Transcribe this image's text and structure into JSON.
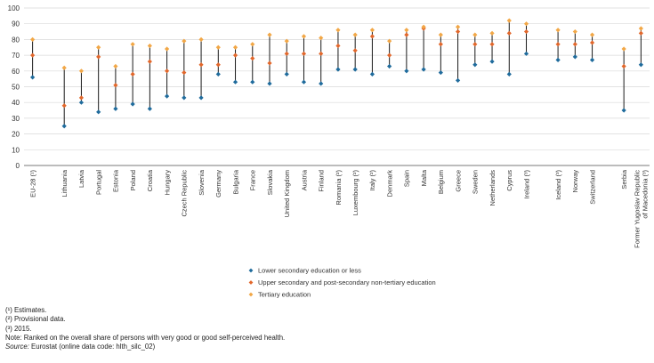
{
  "chart_data": {
    "type": "scatter",
    "ylim": [
      0,
      100
    ],
    "yticks": [
      0,
      10,
      20,
      30,
      40,
      50,
      60,
      70,
      80,
      90,
      100
    ],
    "categories": [
      "EU-28 (¹)",
      "Lithuania",
      "Latvia",
      "Portugal",
      "Estonia",
      "Poland",
      "Croatia",
      "Hungary",
      "Czech Republic",
      "Slovenia",
      "Germany",
      "Bulgaria",
      "France",
      "Slovakia",
      "United Kingdom",
      "Austria",
      "Finland",
      "Romania (²)",
      "Luxembourg (²)",
      "Italy (²)",
      "Denmark",
      "Spain",
      "Malta",
      "Belgium",
      "Greece",
      "Sweden",
      "Netherlands",
      "Cyprus",
      "Ireland (³)",
      "Iceland (³)",
      "Norway",
      "Switzerland",
      "Serbia",
      "Former Yugoslav Republic of Macedonia (³)"
    ],
    "category_label_lines": [
      [
        "EU-28 (¹)"
      ],
      [
        "Lithuania"
      ],
      [
        "Latvia"
      ],
      [
        "Portugal"
      ],
      [
        "Estonia"
      ],
      [
        "Poland"
      ],
      [
        "Croatia"
      ],
      [
        "Hungary"
      ],
      [
        "Czech Republic"
      ],
      [
        "Slovenia"
      ],
      [
        "Germany"
      ],
      [
        "Bulgaria"
      ],
      [
        "France"
      ],
      [
        "Slovakia"
      ],
      [
        "United Kingdom"
      ],
      [
        "Austria"
      ],
      [
        "Finland"
      ],
      [
        "Romania (²)"
      ],
      [
        "Luxembourg (²)"
      ],
      [
        "Italy (²)"
      ],
      [
        "Denmark"
      ],
      [
        "Spain"
      ],
      [
        "Malta"
      ],
      [
        "Belgium"
      ],
      [
        "Greece"
      ],
      [
        "Sweden"
      ],
      [
        "Netherlands"
      ],
      [
        "Cyprus"
      ],
      [
        "Ireland (³)"
      ],
      [
        "Iceland (³)"
      ],
      [
        "Norway"
      ],
      [
        "Switzerland"
      ],
      [
        "Serbia"
      ],
      [
        "Former Yugoslav Republic",
        "of Macedonia (³)"
      ]
    ],
    "group_gap_before": [
      1,
      29,
      32
    ],
    "series": [
      {
        "name": "Lower secondary education or less",
        "color": "#1f6b9c",
        "values": [
          56,
          25,
          40,
          34,
          36,
          39,
          36,
          44,
          43,
          43,
          58,
          53,
          53,
          52,
          58,
          53,
          52,
          61,
          61,
          58,
          63,
          60,
          61,
          59,
          54,
          64,
          66,
          58,
          71,
          67,
          69,
          67,
          35,
          64
        ]
      },
      {
        "name": "Upper secondary and post-secondary non-tertiary education",
        "color": "#e2672b",
        "values": [
          70,
          38,
          43,
          69,
          51,
          58,
          66,
          60,
          59,
          64,
          64,
          70,
          68,
          65,
          71,
          71,
          71,
          76,
          73,
          82,
          70,
          83,
          87,
          77,
          85,
          77,
          77,
          84,
          85,
          77,
          77,
          78,
          63,
          84
        ]
      },
      {
        "name": "Tertiary education",
        "color": "#f2a746",
        "values": [
          80,
          62,
          60,
          75,
          63,
          77,
          76,
          74,
          79,
          80,
          75,
          75,
          77,
          83,
          79,
          82,
          81,
          86,
          83,
          86,
          79,
          86,
          88,
          83,
          88,
          83,
          84,
          92,
          90,
          86,
          85,
          83,
          74,
          87
        ]
      }
    ]
  },
  "footnotes": {
    "note1": "(¹) Estimates.",
    "note2": "(²) Provisional data.",
    "note3": "(³) 2015.",
    "note4": "Note: Ranked on the overall share of persons with very good or good self-perceived health.",
    "source_label": "Source:",
    "source_text": " Eurostat (online data code: hlth_silc_02)"
  }
}
